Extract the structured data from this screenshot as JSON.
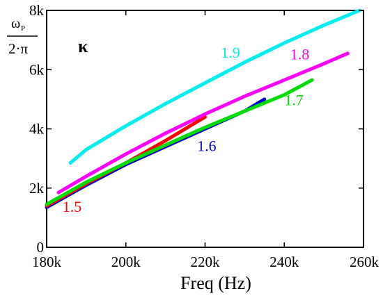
{
  "chart_data": {
    "type": "line",
    "xlabel": "Freq (Hz)",
    "ylabel": {
      "numerator": "ω",
      "subscript": "P",
      "denominator": "2·π"
    },
    "legend_title": "κ",
    "xlim": [
      180000,
      260000
    ],
    "ylim": [
      0,
      8000
    ],
    "x_ticks": [
      {
        "value": 180000,
        "label": "180k"
      },
      {
        "value": 200000,
        "label": "200k"
      },
      {
        "value": 220000,
        "label": "220k"
      },
      {
        "value": 240000,
        "label": "240k"
      },
      {
        "value": 260000,
        "label": "260k"
      }
    ],
    "y_ticks": [
      {
        "value": 0,
        "label": "0"
      },
      {
        "value": 2000,
        "label": "2k"
      },
      {
        "value": 4000,
        "label": "4k"
      },
      {
        "value": 6000,
        "label": "6k"
      },
      {
        "value": 8000,
        "label": "8k"
      }
    ],
    "grid": false,
    "series": [
      {
        "name": "1.5",
        "color": "#ff0000",
        "label_pos": {
          "x": 184000,
          "y": 1200
        },
        "x": [
          180000,
          190000,
          200000,
          210000,
          220000
        ],
        "y": [
          1400,
          2150,
          2850,
          3600,
          4400
        ]
      },
      {
        "name": "1.6",
        "color": "#0000cc",
        "label_pos": {
          "x": 218000,
          "y": 3250
        },
        "x": [
          180000,
          190000,
          200000,
          210000,
          220000,
          230000,
          235000
        ],
        "y": [
          1350,
          2100,
          2800,
          3400,
          4000,
          4600,
          5000
        ]
      },
      {
        "name": "1.7",
        "color": "#00dd00",
        "label_pos": {
          "x": 240000,
          "y": 4800
        },
        "x": [
          180000,
          190000,
          200000,
          210000,
          220000,
          230000,
          240000,
          247000
        ],
        "y": [
          1450,
          2200,
          2850,
          3450,
          4050,
          4600,
          5150,
          5650
        ]
      },
      {
        "name": "1.8",
        "color": "#ff00ff",
        "label_pos": {
          "x": 241500,
          "y": 6350
        },
        "x": [
          183000,
          190000,
          200000,
          210000,
          220000,
          230000,
          240000,
          250000,
          256000
        ],
        "y": [
          1850,
          2400,
          3150,
          3850,
          4500,
          5100,
          5650,
          6200,
          6550
        ]
      },
      {
        "name": "1.9",
        "color": "#00eeee",
        "label_pos": {
          "x": 224000,
          "y": 6400
        },
        "x": [
          186000,
          190000,
          200000,
          210000,
          220000,
          230000,
          240000,
          250000,
          259000
        ],
        "y": [
          2850,
          3300,
          4100,
          4850,
          5550,
          6250,
          6900,
          7500,
          8000
        ]
      }
    ]
  }
}
